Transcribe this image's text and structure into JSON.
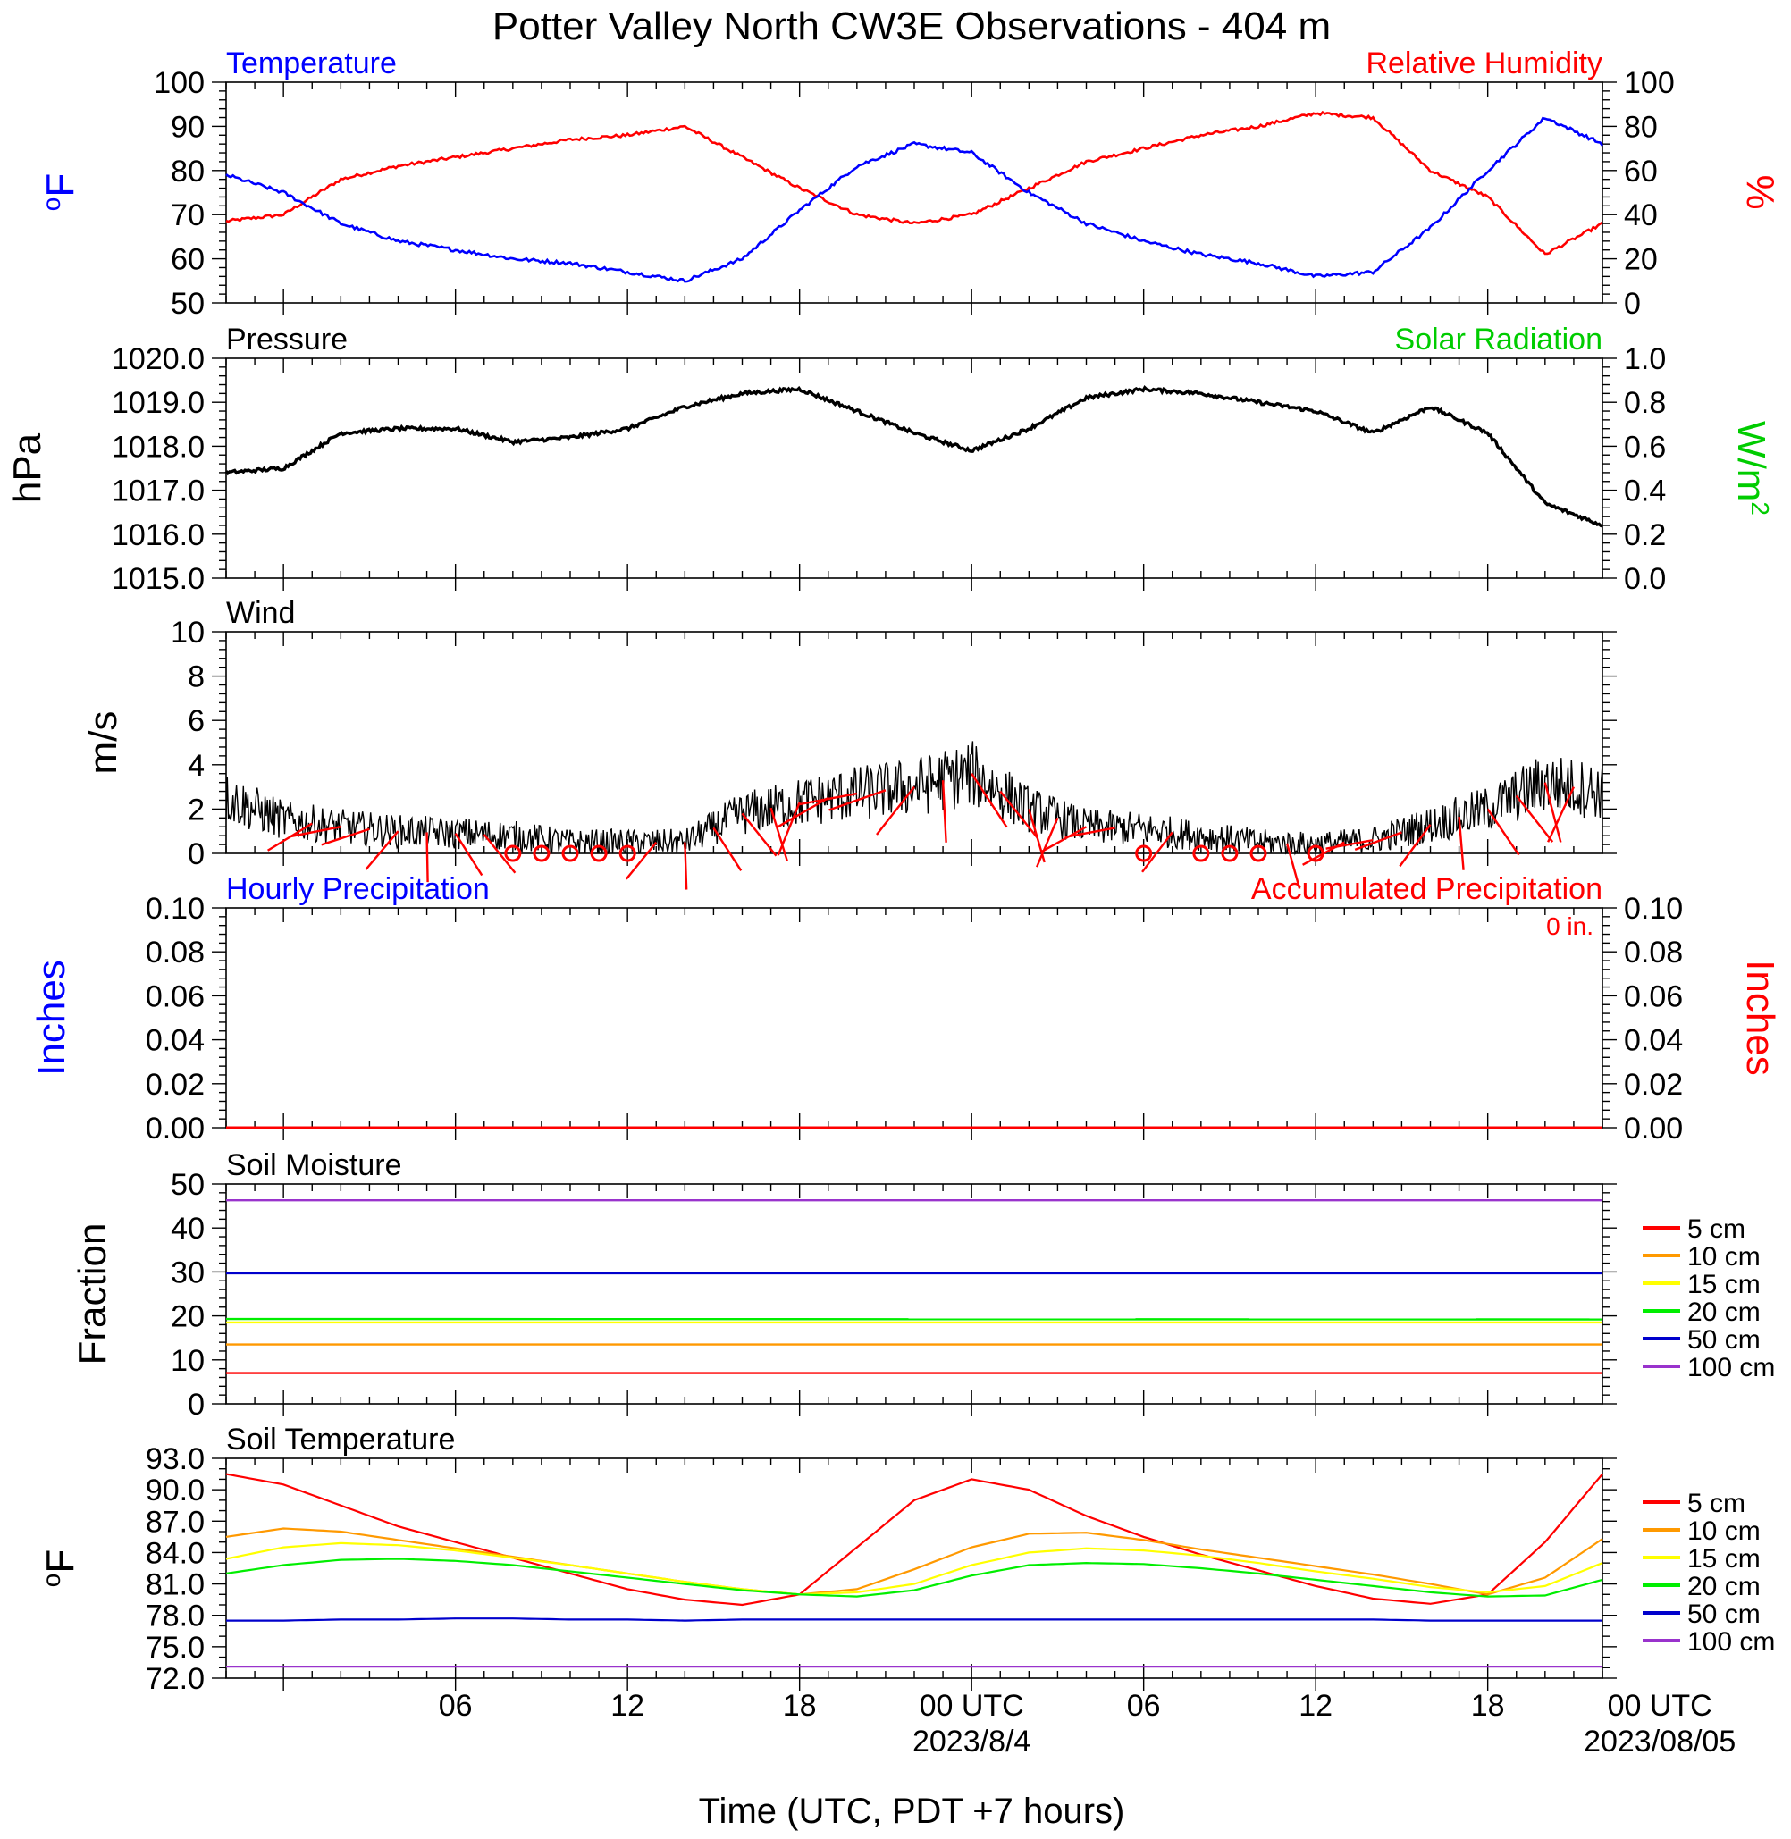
{
  "title": "Potter Valley North CW3E Observations - 404 m",
  "x_axis": {
    "label": "Time (UTC, PDT +7 hours)",
    "ticks": [
      "06",
      "12",
      "18",
      "00 UTC",
      "06",
      "12",
      "18",
      "00 UTC"
    ],
    "dates": [
      "2023/8/4",
      "2023/08/05"
    ],
    "range_hours": [
      -2,
      46
    ],
    "tick_hours": [
      6,
      12,
      18,
      24,
      30,
      36,
      42,
      48
    ]
  },
  "colors": {
    "temperature": "#0000ff",
    "humidity": "#ff0000",
    "pressure": "#000000",
    "solar": "#00cc00",
    "wind": "#000000",
    "barb": "#ff0000",
    "soil_5": "#ff0000",
    "soil_10": "#ff9900",
    "soil_15": "#ffff00",
    "soil_20": "#00ee00",
    "soil_50": "#0000cc",
    "soil_100": "#9933cc"
  },
  "panels": {
    "temp_rh": {
      "left_title": "Temperature",
      "right_title": "Relative Humidity",
      "left_ylabel": "oF",
      "right_ylabel": "%",
      "left_ticks": [
        "100",
        "90",
        "80",
        "70",
        "60",
        "50"
      ],
      "right_ticks": [
        "100",
        "80",
        "60",
        "40",
        "20",
        "0"
      ]
    },
    "pressure": {
      "left_title": "Pressure",
      "right_title": "Solar Radiation",
      "left_ylabel": "hPa",
      "right_ylabel": "W/m2",
      "left_ticks": [
        "1020.0",
        "1019.0",
        "1018.0",
        "1017.0",
        "1016.0",
        "1015.0"
      ],
      "right_ticks": [
        "1.0",
        "0.8",
        "0.6",
        "0.4",
        "0.2",
        "0.0"
      ]
    },
    "wind": {
      "left_title": "Wind",
      "left_ylabel": "m/s",
      "left_ticks": [
        "10",
        "8",
        "6",
        "4",
        "2",
        "0"
      ]
    },
    "precip": {
      "left_title": "Hourly Precipitation",
      "right_title": "Accumulated Precipitation",
      "total_label": "0 in.",
      "left_ylabel": "Inches",
      "right_ylabel": "Inches",
      "left_ticks": [
        "0.10",
        "0.08",
        "0.06",
        "0.04",
        "0.02",
        "0.00"
      ],
      "right_ticks": [
        "0.10",
        "0.08",
        "0.06",
        "0.04",
        "0.02",
        "0.00"
      ]
    },
    "soil_moisture": {
      "left_title": "Soil Moisture",
      "left_ylabel": "Fraction",
      "left_ticks": [
        "50",
        "40",
        "30",
        "20",
        "10",
        "0"
      ],
      "legend": [
        "5 cm",
        "10 cm",
        "15 cm",
        "20 cm",
        "50 cm",
        "100 cm"
      ]
    },
    "soil_temp": {
      "left_title": "Soil Temperature",
      "left_ylabel": "oF",
      "left_ticks": [
        "93.0",
        "90.0",
        "87.0",
        "84.0",
        "81.0",
        "78.0",
        "75.0",
        "72.0"
      ],
      "legend": [
        "5 cm",
        "10 cm",
        "15 cm",
        "20 cm",
        "50 cm",
        "100 cm"
      ]
    }
  },
  "chart_data": [
    {
      "type": "line",
      "title": "Temperature",
      "ylabel": "oF",
      "ylim": [
        50,
        100
      ],
      "x": [
        -2,
        0,
        2,
        4,
        6,
        8,
        10,
        12,
        14,
        16,
        18,
        20,
        22,
        24,
        26,
        28,
        30,
        32,
        34,
        36,
        38,
        40,
        42,
        44,
        46
      ],
      "series": [
        {
          "name": "Temperature",
          "values": [
            79,
            75,
            68,
            64,
            62,
            60,
            59,
            57,
            55,
            60,
            71,
            81,
            86,
            84,
            75,
            68,
            64,
            61,
            59,
            56,
            57,
            67,
            80,
            92,
            86
          ]
        }
      ]
    },
    {
      "type": "line",
      "title": "Relative Humidity",
      "ylabel": "%",
      "ylim": [
        0,
        100
      ],
      "x": [
        -2,
        0,
        2,
        4,
        6,
        8,
        10,
        12,
        14,
        16,
        18,
        20,
        22,
        24,
        26,
        28,
        30,
        32,
        34,
        36,
        38,
        40,
        42,
        44,
        46
      ],
      "series": [
        {
          "name": "Relative Humidity",
          "values": [
            37,
            40,
            56,
            62,
            66,
            70,
            74,
            76,
            80,
            66,
            52,
            40,
            36,
            40,
            52,
            64,
            70,
            76,
            80,
            86,
            84,
            60,
            48,
            22,
            36
          ]
        }
      ]
    },
    {
      "type": "line",
      "title": "Pressure",
      "ylabel": "hPa",
      "ylim": [
        1015,
        1020
      ],
      "x": [
        -2,
        0,
        2,
        4,
        6,
        8,
        10,
        12,
        14,
        16,
        18,
        20,
        22,
        24,
        26,
        28,
        30,
        32,
        34,
        36,
        38,
        40,
        42,
        44,
        46
      ],
      "series": [
        {
          "name": "Pressure",
          "values": [
            1017.4,
            1017.5,
            1018.3,
            1018.4,
            1018.4,
            1018.1,
            1018.2,
            1018.4,
            1018.9,
            1019.2,
            1019.3,
            1018.8,
            1018.3,
            1017.9,
            1018.4,
            1019.1,
            1019.3,
            1019.2,
            1019.0,
            1018.8,
            1018.3,
            1018.9,
            1018.3,
            1016.7,
            1016.2
          ]
        }
      ]
    },
    {
      "type": "line",
      "title": "Wind",
      "ylabel": "m/s",
      "ylim": [
        0,
        10
      ],
      "x": [
        -2,
        0,
        2,
        4,
        6,
        8,
        10,
        12,
        14,
        16,
        18,
        20,
        22,
        24,
        26,
        28,
        30,
        32,
        34,
        36,
        38,
        40,
        42,
        44,
        46
      ],
      "series": [
        {
          "name": "Wind",
          "values": [
            2.5,
            1.5,
            1.2,
            1.0,
            0.9,
            0.8,
            0.5,
            0.5,
            0.5,
            1.8,
            2.3,
            2.7,
            3.0,
            3.6,
            2.0,
            1.2,
            1.1,
            0.8,
            0.5,
            0.4,
            0.6,
            1.3,
            2.0,
            3.2,
            2.8
          ]
        }
      ]
    },
    {
      "type": "line",
      "title": "Hourly Precipitation",
      "ylabel": "Inches",
      "ylim": [
        0,
        0.1
      ],
      "x": [
        -2,
        46
      ],
      "series": [
        {
          "name": "Hourly Precipitation",
          "values": [
            0,
            0
          ]
        },
        {
          "name": "Accumulated Precipitation",
          "values": [
            0,
            0
          ]
        }
      ]
    },
    {
      "type": "line",
      "title": "Soil Moisture",
      "ylabel": "Fraction",
      "ylim": [
        0,
        50
      ],
      "x": [
        -2,
        46
      ],
      "series": [
        {
          "name": "5 cm",
          "values": [
            7,
            7
          ]
        },
        {
          "name": "10 cm",
          "values": [
            13.5,
            13.5
          ]
        },
        {
          "name": "15 cm",
          "values": [
            18.5,
            18.5
          ]
        },
        {
          "name": "20 cm",
          "values": [
            19.3,
            19.2
          ]
        },
        {
          "name": "50 cm",
          "values": [
            29.7,
            29.7
          ]
        },
        {
          "name": "100 cm",
          "values": [
            46.3,
            46.3
          ]
        }
      ]
    },
    {
      "type": "line",
      "title": "Soil Temperature",
      "ylabel": "oF",
      "ylim": [
        72,
        93
      ],
      "x": [
        -2,
        0,
        2,
        4,
        6,
        8,
        10,
        12,
        14,
        16,
        18,
        20,
        22,
        24,
        26,
        28,
        30,
        32,
        34,
        36,
        38,
        40,
        42,
        44,
        46
      ],
      "series": [
        {
          "name": "5 cm",
          "values": [
            91.5,
            90.5,
            88.5,
            86.5,
            85.0,
            83.5,
            82.0,
            80.5,
            79.5,
            79.0,
            80.0,
            84.5,
            89.0,
            91.0,
            90.0,
            87.5,
            85.5,
            83.8,
            82.3,
            80.8,
            79.6,
            79.1,
            80.0,
            85.0,
            91.5
          ]
        },
        {
          "name": "10 cm",
          "values": [
            85.5,
            86.3,
            86.0,
            85.2,
            84.4,
            83.6,
            82.8,
            82.0,
            81.2,
            80.5,
            80.0,
            80.5,
            82.4,
            84.5,
            85.8,
            85.9,
            85.2,
            84.3,
            83.5,
            82.7,
            81.9,
            81.0,
            80.0,
            81.6,
            85.3
          ]
        },
        {
          "name": "15 cm",
          "values": [
            83.4,
            84.5,
            84.9,
            84.7,
            84.2,
            83.5,
            82.8,
            82.0,
            81.2,
            80.5,
            80.0,
            80.2,
            81.0,
            82.8,
            84.0,
            84.4,
            84.2,
            83.7,
            83.0,
            82.2,
            81.5,
            80.7,
            80.2,
            80.8,
            83.0
          ]
        },
        {
          "name": "20 cm",
          "values": [
            82.0,
            82.8,
            83.3,
            83.4,
            83.2,
            82.8,
            82.2,
            81.6,
            81.0,
            80.4,
            80.0,
            79.8,
            80.4,
            81.8,
            82.8,
            83.0,
            82.9,
            82.5,
            82.0,
            81.4,
            80.8,
            80.2,
            79.8,
            79.9,
            81.4
          ]
        },
        {
          "name": "50 cm",
          "values": [
            77.5,
            77.5,
            77.6,
            77.6,
            77.7,
            77.7,
            77.6,
            77.6,
            77.5,
            77.6,
            77.6,
            77.6,
            77.6,
            77.6,
            77.6,
            77.6,
            77.6,
            77.6,
            77.6,
            77.6,
            77.6,
            77.5,
            77.5,
            77.5,
            77.5
          ]
        },
        {
          "name": "100 cm",
          "values": [
            73.1,
            73.1,
            73.1,
            73.1,
            73.1,
            73.1,
            73.1,
            73.1,
            73.1,
            73.1,
            73.1,
            73.1,
            73.1,
            73.1,
            73.1,
            73.1,
            73.1,
            73.1,
            73.1,
            73.1,
            73.1,
            73.1,
            73.1,
            73.1,
            73.1
          ]
        }
      ]
    }
  ]
}
